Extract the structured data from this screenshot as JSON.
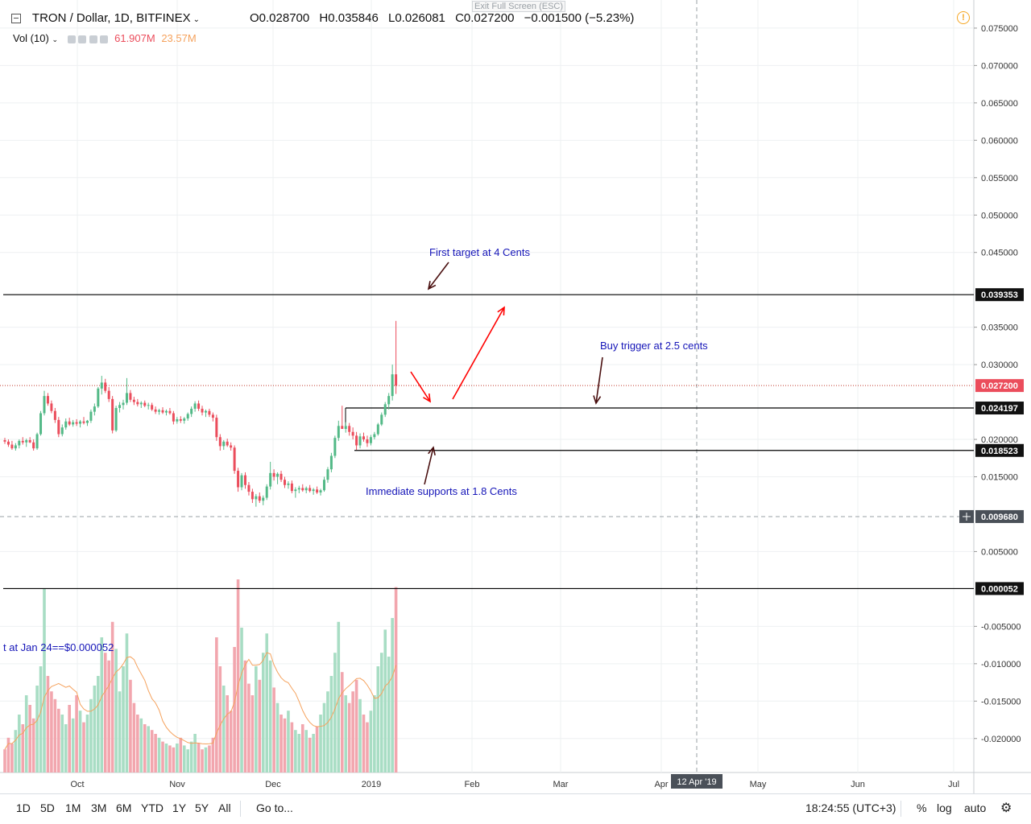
{
  "header": {
    "symbol": "TRON / Dollar, 1D, BITFINEX",
    "open": "O0.028700",
    "high": "H0.035846",
    "low": "L0.026081",
    "close": "C0.027200",
    "change": "−0.001500 (−5.23%)",
    "exit_fullscreen": "Exit Full Screen (ESC)",
    "alert_icon": "!"
  },
  "volume_legend": {
    "label": "Vol (10)",
    "value1": "61.907M",
    "value2": "23.57M"
  },
  "colors": {
    "up": "#53b987",
    "down": "#eb4d5c",
    "vol_up": "#a8ddc4",
    "vol_down": "#f2a6ae",
    "ma": "#f5a25d",
    "annotation": "#1515b8",
    "arrow_red": "#ff0000",
    "arrow_dark": "#4a1010",
    "last_price_line": "#c0392b"
  },
  "chart_data": {
    "type": "candlestick",
    "title": "TRON / Dollar, 1D, BITFINEX",
    "x_axis_labels": [
      "Oct",
      "Nov",
      "Dec",
      "2019",
      "Feb",
      "Mar",
      "Apr",
      "May",
      "Jun",
      "Jul"
    ],
    "crosshair_date": "12 Apr '19",
    "y_ticks": [
      "0.075000",
      "0.070000",
      "0.065000",
      "0.060000",
      "0.055000",
      "0.050000",
      "0.045000",
      "0.035000",
      "0.030000",
      "0.020000",
      "0.015000",
      "0.005000",
      "-0.005000",
      "-0.010000",
      "-0.015000",
      "-0.020000"
    ],
    "ylim": [
      -0.025,
      0.078
    ],
    "price_labels": [
      {
        "text": "0.039353",
        "value": 0.039353,
        "style": "dark"
      },
      {
        "text": "0.027200",
        "value": 0.0272,
        "style": "red"
      },
      {
        "text": "0.024197",
        "value": 0.024197,
        "style": "dark"
      },
      {
        "text": "0.018523",
        "value": 0.018523,
        "style": "dark"
      },
      {
        "text": "0.009680",
        "value": 0.00968,
        "style": "gray"
      },
      {
        "text": "0.000052",
        "value": 5.2e-05,
        "style": "dark"
      }
    ],
    "horizontal_levels": [
      0.039353,
      0.024197,
      0.018523,
      5.2e-05
    ],
    "last_price": 0.0272,
    "crosshair_price": 0.00968,
    "candles_ohlc": [
      [
        0.0199,
        0.0202,
        0.0194,
        0.0197
      ],
      [
        0.0197,
        0.02,
        0.019,
        0.0193
      ],
      [
        0.0193,
        0.0198,
        0.0186,
        0.0188
      ],
      [
        0.0188,
        0.0195,
        0.0185,
        0.0192
      ],
      [
        0.0192,
        0.02,
        0.0188,
        0.0198
      ],
      [
        0.0198,
        0.0203,
        0.0193,
        0.0196
      ],
      [
        0.0196,
        0.0201,
        0.019,
        0.0199
      ],
      [
        0.0199,
        0.0203,
        0.0195,
        0.0196
      ],
      [
        0.0196,
        0.02,
        0.0185,
        0.0188
      ],
      [
        0.0188,
        0.0209,
        0.0186,
        0.0207
      ],
      [
        0.0207,
        0.0238,
        0.0205,
        0.0235
      ],
      [
        0.0235,
        0.0265,
        0.0232,
        0.0258
      ],
      [
        0.0258,
        0.0262,
        0.0245,
        0.0248
      ],
      [
        0.0248,
        0.0252,
        0.0235,
        0.0238
      ],
      [
        0.0238,
        0.0242,
        0.0222,
        0.0226
      ],
      [
        0.0226,
        0.023,
        0.0203,
        0.0207
      ],
      [
        0.0207,
        0.022,
        0.0204,
        0.0216
      ],
      [
        0.0216,
        0.0228,
        0.0213,
        0.0224
      ],
      [
        0.0224,
        0.0229,
        0.0218,
        0.022
      ],
      [
        0.022,
        0.0226,
        0.0217,
        0.0223
      ],
      [
        0.0223,
        0.0227,
        0.0218,
        0.0221
      ],
      [
        0.0221,
        0.0226,
        0.0216,
        0.0224
      ],
      [
        0.0224,
        0.023,
        0.022,
        0.0222
      ],
      [
        0.0222,
        0.0226,
        0.0218,
        0.0225
      ],
      [
        0.0225,
        0.024,
        0.0222,
        0.0237
      ],
      [
        0.0237,
        0.0248,
        0.0232,
        0.0244
      ],
      [
        0.0244,
        0.027,
        0.0242,
        0.0268
      ],
      [
        0.0268,
        0.0285,
        0.026,
        0.0276
      ],
      [
        0.0276,
        0.0281,
        0.0262,
        0.0265
      ],
      [
        0.0265,
        0.027,
        0.025,
        0.0254
      ],
      [
        0.0254,
        0.0258,
        0.0208,
        0.0212
      ],
      [
        0.0212,
        0.0245,
        0.021,
        0.0242
      ],
      [
        0.0242,
        0.025,
        0.0236,
        0.0246
      ],
      [
        0.0246,
        0.0253,
        0.024,
        0.0249
      ],
      [
        0.0249,
        0.0282,
        0.0246,
        0.0262
      ],
      [
        0.0262,
        0.0266,
        0.025,
        0.0253
      ],
      [
        0.0253,
        0.0257,
        0.0246,
        0.025
      ],
      [
        0.025,
        0.0254,
        0.0244,
        0.0247
      ],
      [
        0.0247,
        0.0251,
        0.0242,
        0.0249
      ],
      [
        0.0249,
        0.0252,
        0.0243,
        0.0245
      ],
      [
        0.0245,
        0.0249,
        0.024,
        0.0246
      ],
      [
        0.0246,
        0.0249,
        0.0238,
        0.024
      ],
      [
        0.024,
        0.0244,
        0.0234,
        0.0237
      ],
      [
        0.0237,
        0.0241,
        0.0233,
        0.0239
      ],
      [
        0.0239,
        0.0243,
        0.0234,
        0.0236
      ],
      [
        0.0236,
        0.024,
        0.0232,
        0.0238
      ],
      [
        0.0238,
        0.0242,
        0.0233,
        0.0235
      ],
      [
        0.0235,
        0.0238,
        0.022,
        0.0224
      ],
      [
        0.0224,
        0.023,
        0.0221,
        0.0227
      ],
      [
        0.0227,
        0.0231,
        0.0222,
        0.0225
      ],
      [
        0.0225,
        0.023,
        0.0221,
        0.0228
      ],
      [
        0.0228,
        0.0236,
        0.0225,
        0.0234
      ],
      [
        0.0234,
        0.0244,
        0.023,
        0.0241
      ],
      [
        0.0241,
        0.0251,
        0.0237,
        0.0248
      ],
      [
        0.0248,
        0.0252,
        0.0238,
        0.0241
      ],
      [
        0.0241,
        0.0245,
        0.0232,
        0.0236
      ],
      [
        0.0236,
        0.024,
        0.023,
        0.0238
      ],
      [
        0.0238,
        0.0241,
        0.023,
        0.0233
      ],
      [
        0.0233,
        0.0236,
        0.0224,
        0.0229
      ],
      [
        0.0229,
        0.0233,
        0.0198,
        0.0203
      ],
      [
        0.0203,
        0.0207,
        0.0185,
        0.0191
      ],
      [
        0.0191,
        0.0199,
        0.0186,
        0.0197
      ],
      [
        0.0197,
        0.0201,
        0.019,
        0.0192
      ],
      [
        0.0192,
        0.0196,
        0.0185,
        0.0189
      ],
      [
        0.0189,
        0.0192,
        0.0154,
        0.0158
      ],
      [
        0.0158,
        0.0162,
        0.013,
        0.0136
      ],
      [
        0.0136,
        0.0155,
        0.0132,
        0.0152
      ],
      [
        0.0152,
        0.0156,
        0.0134,
        0.0139
      ],
      [
        0.0139,
        0.0143,
        0.0125,
        0.013
      ],
      [
        0.013,
        0.0134,
        0.0115,
        0.012
      ],
      [
        0.012,
        0.0127,
        0.011,
        0.0124
      ],
      [
        0.0124,
        0.0129,
        0.0115,
        0.0118
      ],
      [
        0.0118,
        0.0125,
        0.0112,
        0.0122
      ],
      [
        0.0122,
        0.014,
        0.0119,
        0.0137
      ],
      [
        0.0137,
        0.017,
        0.0133,
        0.0155
      ],
      [
        0.0155,
        0.016,
        0.0145,
        0.015
      ],
      [
        0.015,
        0.0156,
        0.014,
        0.0154
      ],
      [
        0.0154,
        0.0158,
        0.0143,
        0.0146
      ],
      [
        0.0146,
        0.015,
        0.0135,
        0.0139
      ],
      [
        0.0139,
        0.0144,
        0.0134,
        0.0141
      ],
      [
        0.0141,
        0.0145,
        0.0128,
        0.0131
      ],
      [
        0.0131,
        0.0136,
        0.0122,
        0.0133
      ],
      [
        0.0133,
        0.0138,
        0.0128,
        0.0135
      ],
      [
        0.0135,
        0.014,
        0.013,
        0.0132
      ],
      [
        0.0132,
        0.0137,
        0.0128,
        0.0135
      ],
      [
        0.0135,
        0.0139,
        0.0129,
        0.0131
      ],
      [
        0.0131,
        0.0135,
        0.0126,
        0.0133
      ],
      [
        0.0133,
        0.0137,
        0.0127,
        0.0129
      ],
      [
        0.0129,
        0.0134,
        0.0125,
        0.0132
      ],
      [
        0.0132,
        0.015,
        0.013,
        0.0146
      ],
      [
        0.0146,
        0.0163,
        0.0142,
        0.016
      ],
      [
        0.016,
        0.0182,
        0.0156,
        0.0178
      ],
      [
        0.0178,
        0.0205,
        0.0175,
        0.0202
      ],
      [
        0.0202,
        0.0225,
        0.0198,
        0.0218
      ],
      [
        0.0218,
        0.0245,
        0.0214,
        0.0214
      ],
      [
        0.0214,
        0.0223,
        0.0209,
        0.0218
      ],
      [
        0.0218,
        0.0222,
        0.0205,
        0.021
      ],
      [
        0.021,
        0.0216,
        0.02,
        0.0205
      ],
      [
        0.0205,
        0.021,
        0.0186,
        0.0192
      ],
      [
        0.0192,
        0.0208,
        0.0188,
        0.0204
      ],
      [
        0.0204,
        0.0209,
        0.0197,
        0.02
      ],
      [
        0.02,
        0.0205,
        0.019,
        0.0195
      ],
      [
        0.0195,
        0.0206,
        0.0192,
        0.0203
      ],
      [
        0.0203,
        0.021,
        0.02,
        0.0207
      ],
      [
        0.0207,
        0.0222,
        0.0205,
        0.022
      ],
      [
        0.022,
        0.0236,
        0.0218,
        0.0233
      ],
      [
        0.0233,
        0.025,
        0.023,
        0.0247
      ],
      [
        0.0247,
        0.0262,
        0.024,
        0.0258
      ],
      [
        0.0258,
        0.03,
        0.0252,
        0.0287
      ],
      [
        0.0287,
        0.035846,
        0.026081,
        0.0272
      ]
    ],
    "volume_ratio": [
      0.12,
      0.18,
      0.15,
      0.22,
      0.3,
      0.25,
      0.4,
      0.35,
      0.28,
      0.45,
      0.55,
      0.95,
      0.5,
      0.42,
      0.38,
      0.33,
      0.3,
      0.25,
      0.35,
      0.28,
      0.4,
      0.32,
      0.26,
      0.3,
      0.38,
      0.45,
      0.5,
      0.7,
      0.62,
      0.58,
      0.78,
      0.64,
      0.42,
      0.55,
      0.72,
      0.48,
      0.36,
      0.3,
      0.28,
      0.25,
      0.24,
      0.22,
      0.2,
      0.18,
      0.16,
      0.15,
      0.14,
      0.13,
      0.15,
      0.18,
      0.14,
      0.12,
      0.16,
      0.2,
      0.15,
      0.12,
      0.13,
      0.14,
      0.18,
      0.7,
      0.55,
      0.45,
      0.4,
      0.32,
      0.65,
      1.0,
      0.75,
      0.58,
      0.46,
      0.4,
      0.55,
      0.48,
      0.62,
      0.72,
      0.58,
      0.44,
      0.36,
      0.3,
      0.28,
      0.32,
      0.26,
      0.22,
      0.2,
      0.25,
      0.22,
      0.18,
      0.2,
      0.24,
      0.3,
      0.36,
      0.42,
      0.5,
      0.62,
      0.78,
      0.52,
      0.4,
      0.36,
      0.42,
      0.48,
      0.38,
      0.3,
      0.26,
      0.32,
      0.4,
      0.55,
      0.62,
      0.74,
      0.6,
      0.8,
      0.96
    ],
    "annotations": [
      {
        "text": "First target at 4 Cents"
      },
      {
        "text": "Buy trigger at 2.5 cents"
      },
      {
        "text": "Immediate supports at 1.8 Cents"
      },
      {
        "text": "t at Jan 24==$0.000052"
      }
    ]
  },
  "toolbar": {
    "ranges": [
      "1D",
      "5D",
      "1M",
      "3M",
      "6M",
      "YTD",
      "1Y",
      "5Y",
      "All"
    ],
    "goto": "Go to...",
    "clock": "18:24:55 (UTC+3)",
    "percent": "%",
    "log": "log",
    "auto": "auto",
    "settings_icon": "gear-icon"
  }
}
